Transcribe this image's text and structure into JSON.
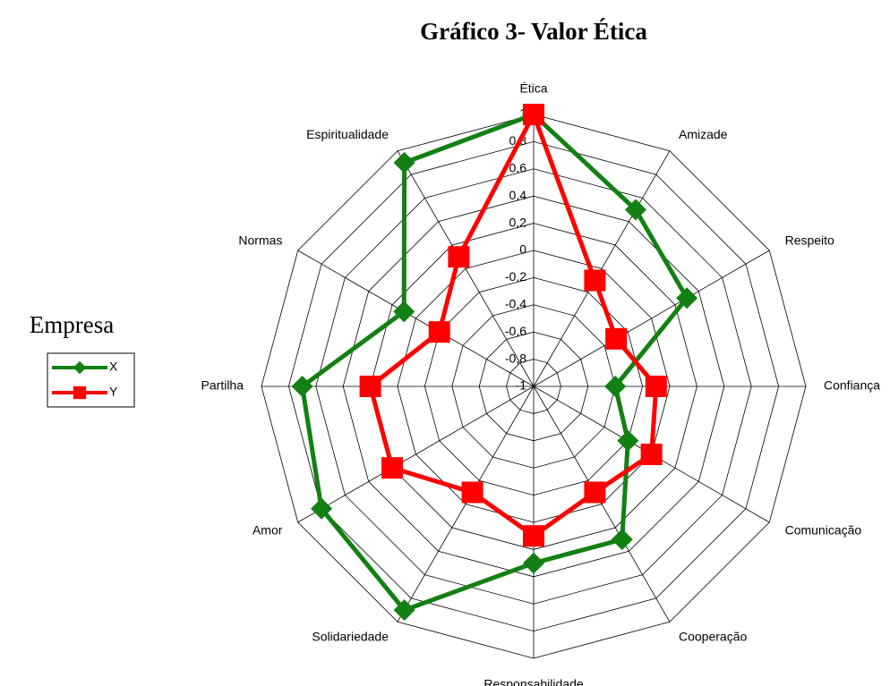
{
  "chart_data": {
    "type": "radar",
    "title": "Gráfico 3- Valor Ética",
    "categories": [
      "Ética",
      "Amizade",
      "Respeito",
      "Confiança",
      "Comunicação",
      "Cooperação",
      "Responsabilidade",
      "Solidariedade",
      "Amor",
      "Partilha",
      "Normas",
      "Espiritualidade"
    ],
    "legend_title": "Empresa",
    "legend": "left",
    "series": [
      {
        "name": "X",
        "color": "#138013",
        "marker": "diamond",
        "values": [
          1,
          0.5,
          0.3,
          -0.4,
          -0.2,
          0.3,
          0.3,
          0.9,
          0.8,
          0.7,
          0.1,
          0.9
        ]
      },
      {
        "name": "Y",
        "color": "#ff0000",
        "marker": "square",
        "values": [
          1,
          -0.1,
          -0.3,
          -0.1,
          0,
          -0.1,
          0.1,
          -0.1,
          0.2,
          0.2,
          -0.2,
          0.1
        ]
      }
    ],
    "ylim": [
      -1,
      1
    ],
    "yticks": [
      {
        "value": -1,
        "label": "-1"
      },
      {
        "value": -0.8,
        "label": "-0,8"
      },
      {
        "value": -0.6,
        "label": "-0,6"
      },
      {
        "value": -0.4,
        "label": "-0,4"
      },
      {
        "value": -0.2,
        "label": "-0,2"
      },
      0,
      {
        "value": 0.2,
        "label": "0,2"
      },
      {
        "value": 0.4,
        "label": "0,4"
      },
      {
        "value": 0.6,
        "label": "0,6"
      },
      {
        "value": 0.8,
        "label": "0,8"
      },
      1
    ],
    "grid": true
  }
}
